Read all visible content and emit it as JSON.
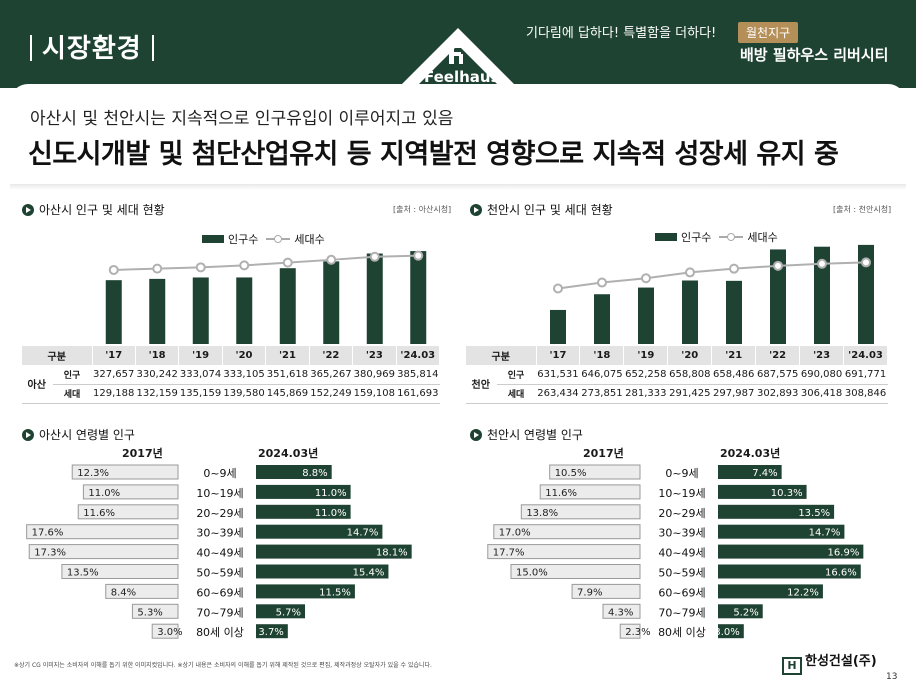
{
  "header": {
    "section_title": "시장환경",
    "slogan": "기다림에 답하다! 특별함을 더하다!",
    "district_badge": "월천지구",
    "project_name": "배방 필하우스 리버시티",
    "logo_text": "Feelhaus"
  },
  "headline": {
    "sub": "아산시 및 천안시는 지속적으로 인구유입이 이루어지고 있음",
    "main": "신도시개발 및 첨단산업유치 등 지역발전 영향으로 지속적 성장세 유지 중"
  },
  "legend": {
    "bar": "인구수",
    "line": "세대수"
  },
  "table_headers": {
    "category": "구분",
    "pop": "인구",
    "house": "세대"
  },
  "age_years": {
    "left": "2017년",
    "right": "2024.03년"
  },
  "chart_data": [
    {
      "type": "bar",
      "title": "아산시 인구 및 세대 현황",
      "source": "[출처 : 아산시청]",
      "region": "아산",
      "categories": [
        "'17",
        "'18",
        "'19",
        "'20",
        "'21",
        "'22",
        "'23",
        "'24.03"
      ],
      "series": [
        {
          "name": "인구수",
          "values": [
            327657,
            330242,
            333074,
            333105,
            351618,
            365267,
            380969,
            385814
          ],
          "labels": [
            "327,657",
            "330,242",
            "333,074",
            "333,105",
            "351,618",
            "365,267",
            "380,969",
            "385,814"
          ]
        },
        {
          "name": "세대수",
          "values": [
            129188,
            132159,
            135159,
            139580,
            145869,
            152249,
            159108,
            161693
          ],
          "labels": [
            "129,188",
            "132,159",
            "135,159",
            "139,580",
            "145,869",
            "152,249",
            "159,108",
            "161,693"
          ]
        }
      ]
    },
    {
      "type": "bar",
      "title": "천안시 인구 및 세대 현황",
      "source": "[출처 : 천안시청]",
      "region": "천안",
      "categories": [
        "'17",
        "'18",
        "'19",
        "'20",
        "'21",
        "'22",
        "'23",
        "'24.03"
      ],
      "series": [
        {
          "name": "인구수",
          "values": [
            631531,
            646075,
            652258,
            658808,
            658486,
            687575,
            690080,
            691771
          ],
          "labels": [
            "631,531",
            "646,075",
            "652,258",
            "658,808",
            "658,486",
            "687,575",
            "690,080",
            "691,771"
          ]
        },
        {
          "name": "세대수",
          "values": [
            263434,
            273851,
            281333,
            291425,
            297987,
            302893,
            306418,
            308846
          ],
          "labels": [
            "263,434",
            "273,851",
            "281,333",
            "291,425",
            "297,987",
            "302,893",
            "306,418",
            "308,846"
          ]
        }
      ]
    },
    {
      "type": "bar",
      "title": "아산시 연령별 인구",
      "categories": [
        "0~9세",
        "10~19세",
        "20~29세",
        "30~39세",
        "40~49세",
        "50~59세",
        "60~69세",
        "70~79세",
        "80세 이상"
      ],
      "series": [
        {
          "name": "2017년",
          "values": [
            12.3,
            11.0,
            11.6,
            17.6,
            17.3,
            13.5,
            8.4,
            5.3,
            3.0
          ]
        },
        {
          "name": "2024.03년",
          "values": [
            8.8,
            11.0,
            11.0,
            14.7,
            18.1,
            15.4,
            11.5,
            5.7,
            3.7
          ]
        }
      ]
    },
    {
      "type": "bar",
      "title": "천안시 연령별 인구",
      "categories": [
        "0~9세",
        "10~19세",
        "20~29세",
        "30~39세",
        "40~49세",
        "50~59세",
        "60~69세",
        "70~79세",
        "80세 이상"
      ],
      "series": [
        {
          "name": "2017년",
          "values": [
            10.5,
            11.6,
            13.8,
            17.0,
            17.7,
            15.0,
            7.9,
            4.3,
            2.3
          ]
        },
        {
          "name": "2024.03년",
          "values": [
            7.4,
            10.3,
            13.5,
            14.7,
            16.9,
            16.6,
            12.2,
            5.2,
            3.0
          ]
        }
      ]
    }
  ],
  "footer": {
    "note": "※상기 CG 이미지는 소비자의 이해를 돕기 위한 이미지컷입니다. ※상기 내용은 소비자의 이해를 돕기 위해 제작된 것으로 편집, 제작과정상 오탈자가 있을 수 있습니다.",
    "brand": "한성건설(주)",
    "brand_mark": "H",
    "page": "13"
  },
  "colors": {
    "primary": "#1f4332",
    "accent": "#b58f58",
    "line": "#b0b0b0",
    "old_bar": "#ececec"
  }
}
